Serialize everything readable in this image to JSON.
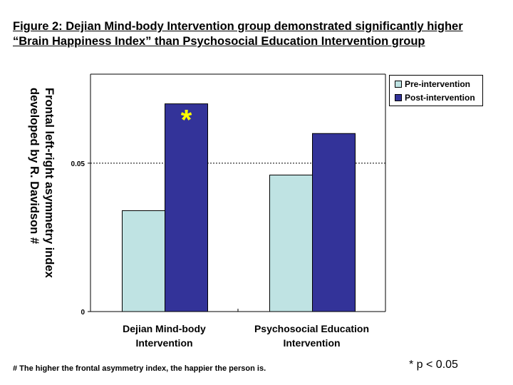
{
  "figure": {
    "title_line1": "Figure 2: Dejian Mind-body Intervention group demonstrated significantly higher",
    "title_line2": "“Brain Happiness Index” than Psychosocial Education Intervention group",
    "ylabel_line1": "Frontal left-right asymmetry index",
    "ylabel_line2": "developed by R. Davidson #",
    "footnote": "# The higher the frontal asymmetry index, the happier the person is.",
    "significance_note": "* p < 0.05"
  },
  "chart_data": {
    "type": "bar",
    "categories": [
      "Dejian Mind-body Intervention",
      "Psychosocial Education Intervention"
    ],
    "category_lines": [
      [
        "Dejian Mind-body",
        "Intervention"
      ],
      [
        "Psychosocial Education",
        "Intervention"
      ]
    ],
    "series": [
      {
        "name": "Pre-intervention",
        "values": [
          0.034,
          0.046
        ],
        "color": "#bfe3e3"
      },
      {
        "name": "Post-intervention",
        "values": [
          0.07,
          0.06
        ],
        "color": "#333399"
      }
    ],
    "yticks": [
      {
        "value": 0,
        "label": "0"
      },
      {
        "value": 0.05,
        "label": "0.05"
      }
    ],
    "ylim": [
      0,
      0.08
    ],
    "reference_line": 0.05,
    "annotations": [
      {
        "category_index": 0,
        "series_index": 1,
        "text": "*",
        "color": "#ffff00"
      }
    ],
    "legend_position": "top-right",
    "grid": false
  }
}
